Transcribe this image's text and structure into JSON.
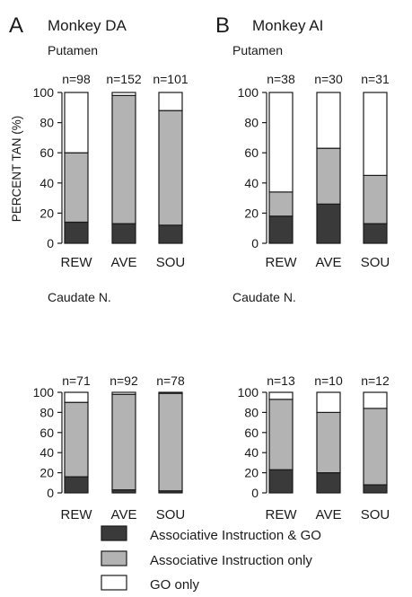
{
  "figure": {
    "panel_a_letter": "A",
    "panel_a_title": "Monkey DA",
    "panel_b_letter": "B",
    "panel_b_title": "Monkey AI",
    "ylabel": "PERCENT TAN (%)"
  },
  "colors": {
    "assoc_go": "#3a3a3a",
    "assoc_only": "#b3b3b3",
    "go_only": "#ffffff",
    "outline": "#1a1a1a"
  },
  "legend": {
    "items": [
      {
        "key": "assoc_go",
        "label": "Associative Instruction & GO"
      },
      {
        "key": "assoc_only",
        "label": "Associative Instruction only"
      },
      {
        "key": "go_only",
        "label": "GO only"
      }
    ]
  },
  "chart_data": [
    {
      "type": "bar",
      "stacked": true,
      "panel": "A",
      "title": "Putamen",
      "categories": [
        "REW",
        "AVE",
        "SOU"
      ],
      "counts": [
        "n=98",
        "n=152",
        "n=101"
      ],
      "ylim": [
        0,
        100
      ],
      "yticks": [
        0,
        20,
        40,
        60,
        80,
        100
      ],
      "series": [
        {
          "name": "Associative Instruction & GO",
          "key": "assoc_go",
          "values": [
            14,
            13,
            12
          ]
        },
        {
          "name": "Associative Instruction only",
          "key": "assoc_only",
          "values": [
            46,
            85,
            76
          ]
        },
        {
          "name": "GO only",
          "key": "go_only",
          "values": [
            40,
            2,
            12
          ]
        }
      ]
    },
    {
      "type": "bar",
      "stacked": true,
      "panel": "B",
      "title": "Putamen",
      "categories": [
        "REW",
        "AVE",
        "SOU"
      ],
      "counts": [
        "n=38",
        "n=30",
        "n=31"
      ],
      "ylim": [
        0,
        100
      ],
      "yticks": [
        0,
        20,
        40,
        60,
        80,
        100
      ],
      "series": [
        {
          "name": "Associative Instruction & GO",
          "key": "assoc_go",
          "values": [
            18,
            26,
            13
          ]
        },
        {
          "name": "Associative Instruction only",
          "key": "assoc_only",
          "values": [
            16,
            37,
            32
          ]
        },
        {
          "name": "GO only",
          "key": "go_only",
          "values": [
            66,
            37,
            55
          ]
        }
      ]
    },
    {
      "type": "bar",
      "stacked": true,
      "panel": "A",
      "title": "Caudate N.",
      "categories": [
        "REW",
        "AVE",
        "SOU"
      ],
      "counts": [
        "n=71",
        "n=92",
        "n=78"
      ],
      "ylim": [
        0,
        100
      ],
      "yticks": [
        0,
        20,
        40,
        60,
        80,
        100
      ],
      "series": [
        {
          "name": "Associative Instruction & GO",
          "key": "assoc_go",
          "values": [
            16,
            3,
            2
          ]
        },
        {
          "name": "Associative Instruction only",
          "key": "assoc_only",
          "values": [
            74,
            95,
            97
          ]
        },
        {
          "name": "GO only",
          "key": "go_only",
          "values": [
            10,
            2,
            1
          ]
        }
      ]
    },
    {
      "type": "bar",
      "stacked": true,
      "panel": "B",
      "title": "Caudate N.",
      "categories": [
        "REW",
        "AVE",
        "SOU"
      ],
      "counts": [
        "n=13",
        "n=10",
        "n=12"
      ],
      "ylim": [
        0,
        100
      ],
      "yticks": [
        0,
        20,
        40,
        60,
        80,
        100
      ],
      "series": [
        {
          "name": "Associative Instruction & GO",
          "key": "assoc_go",
          "values": [
            23,
            20,
            8
          ]
        },
        {
          "name": "Associative Instruction only",
          "key": "assoc_only",
          "values": [
            70,
            60,
            76
          ]
        },
        {
          "name": "GO only",
          "key": "go_only",
          "values": [
            7,
            20,
            16
          ]
        }
      ]
    }
  ]
}
